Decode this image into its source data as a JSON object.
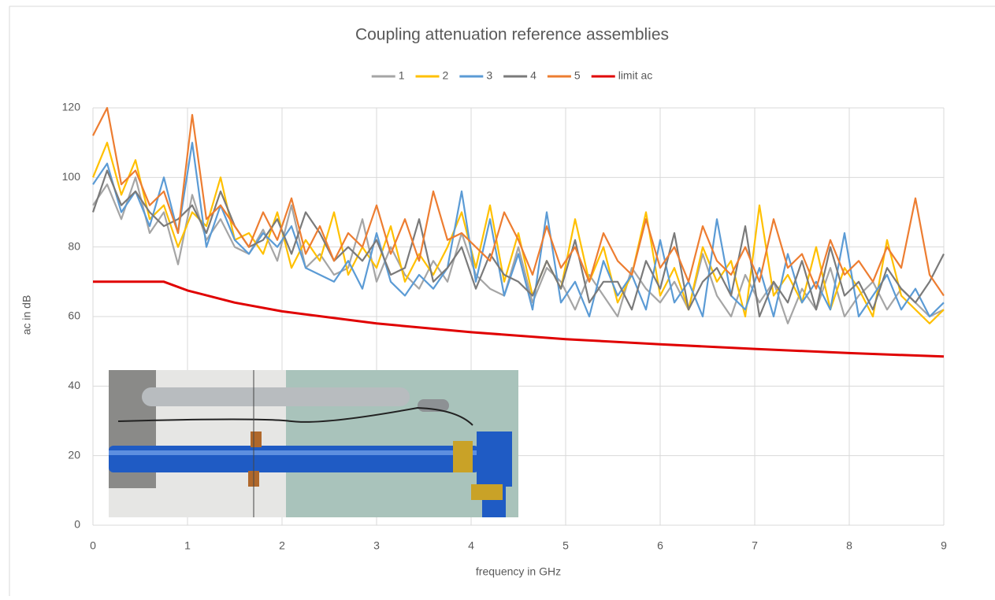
{
  "chart_data": {
    "type": "line",
    "title": "Coupling attenuation reference assemblies",
    "x_label": "frequency in GHz",
    "y_label": "ac in dB",
    "xlim": [
      0,
      9
    ],
    "xticks": [
      0,
      1,
      2,
      3,
      4,
      5,
      6,
      7,
      8,
      9
    ],
    "ylim": [
      0,
      120
    ],
    "yticks": [
      0,
      20,
      40,
      60,
      80,
      100,
      120
    ],
    "grid": true,
    "legend": "top",
    "x": [
      0,
      0.15,
      0.3,
      0.45,
      0.6,
      0.75,
      0.9,
      1.05,
      1.2,
      1.35,
      1.5,
      1.65,
      1.8,
      1.95,
      2.1,
      2.25,
      2.4,
      2.55,
      2.7,
      2.85,
      3,
      3.15,
      3.3,
      3.45,
      3.6,
      3.75,
      3.9,
      4.05,
      4.2,
      4.35,
      4.5,
      4.65,
      4.8,
      4.95,
      5.1,
      5.25,
      5.4,
      5.55,
      5.7,
      5.85,
      6,
      6.15,
      6.3,
      6.45,
      6.6,
      6.75,
      6.9,
      7.05,
      7.2,
      7.35,
      7.5,
      7.65,
      7.8,
      7.95,
      8.1,
      8.25,
      8.4,
      8.55,
      8.7,
      8.85,
      9
    ],
    "series": [
      {
        "name": "1",
        "color": "#a5a5a5",
        "values": [
          92,
          98,
          88,
          100,
          84,
          90,
          75,
          95,
          82,
          88,
          80,
          78,
          85,
          76,
          92,
          74,
          78,
          72,
          74,
          88,
          70,
          80,
          72,
          68,
          76,
          70,
          84,
          72,
          68,
          66,
          80,
          64,
          74,
          70,
          62,
          72,
          66,
          60,
          74,
          68,
          64,
          70,
          62,
          78,
          66,
          60,
          72,
          64,
          70,
          58,
          68,
          62,
          74,
          60,
          66,
          70,
          62,
          68,
          64,
          60,
          62
        ]
      },
      {
        "name": "2",
        "color": "#ffc000",
        "values": [
          100,
          110,
          95,
          105,
          88,
          92,
          80,
          90,
          86,
          100,
          82,
          84,
          78,
          90,
          74,
          82,
          76,
          90,
          72,
          80,
          74,
          86,
          70,
          78,
          72,
          80,
          90,
          74,
          92,
          70,
          84,
          66,
          76,
          68,
          88,
          70,
          80,
          64,
          72,
          90,
          66,
          74,
          62,
          80,
          70,
          76,
          60,
          92,
          66,
          72,
          64,
          80,
          62,
          74,
          68,
          60,
          82,
          66,
          62,
          58,
          62
        ]
      },
      {
        "name": "3",
        "color": "#5b9bd5",
        "values": [
          98,
          104,
          90,
          96,
          86,
          100,
          84,
          110,
          80,
          92,
          82,
          78,
          84,
          80,
          86,
          74,
          72,
          70,
          76,
          68,
          84,
          70,
          66,
          72,
          68,
          74,
          96,
          70,
          88,
          66,
          78,
          62,
          90,
          64,
          70,
          60,
          76,
          66,
          72,
          62,
          82,
          64,
          70,
          60,
          88,
          66,
          62,
          74,
          60,
          78,
          64,
          70,
          62,
          84,
          60,
          66,
          72,
          62,
          68,
          60,
          64
        ]
      },
      {
        "name": "4",
        "color": "#7a7a7a",
        "values": [
          90,
          102,
          92,
          96,
          90,
          86,
          88,
          92,
          84,
          96,
          86,
          80,
          82,
          88,
          78,
          90,
          84,
          76,
          80,
          76,
          82,
          72,
          74,
          88,
          70,
          74,
          80,
          68,
          78,
          72,
          70,
          66,
          76,
          68,
          82,
          64,
          70,
          70,
          62,
          76,
          68,
          84,
          62,
          70,
          74,
          66,
          86,
          60,
          70,
          64,
          76,
          62,
          80,
          66,
          70,
          62,
          74,
          68,
          64,
          70,
          78
        ]
      },
      {
        "name": "5",
        "color": "#ed7d31",
        "values": [
          112,
          120,
          98,
          102,
          92,
          96,
          84,
          118,
          88,
          92,
          86,
          80,
          90,
          82,
          94,
          78,
          86,
          76,
          84,
          80,
          92,
          78,
          88,
          76,
          96,
          82,
          84,
          80,
          76,
          90,
          82,
          72,
          86,
          74,
          80,
          70,
          84,
          76,
          72,
          88,
          74,
          80,
          70,
          86,
          76,
          72,
          80,
          70,
          88,
          74,
          78,
          68,
          82,
          72,
          76,
          70,
          80,
          74,
          94,
          72,
          66
        ]
      },
      {
        "name": "limit ac",
        "color": "#e00000",
        "x": [
          0,
          0.75,
          1,
          1.5,
          2,
          3,
          4,
          5,
          6,
          7,
          8,
          9
        ],
        "values": [
          70,
          70,
          67.5,
          64,
          61.5,
          58,
          55.5,
          53.5,
          52,
          50.7,
          49.5,
          48.5
        ]
      }
    ]
  }
}
